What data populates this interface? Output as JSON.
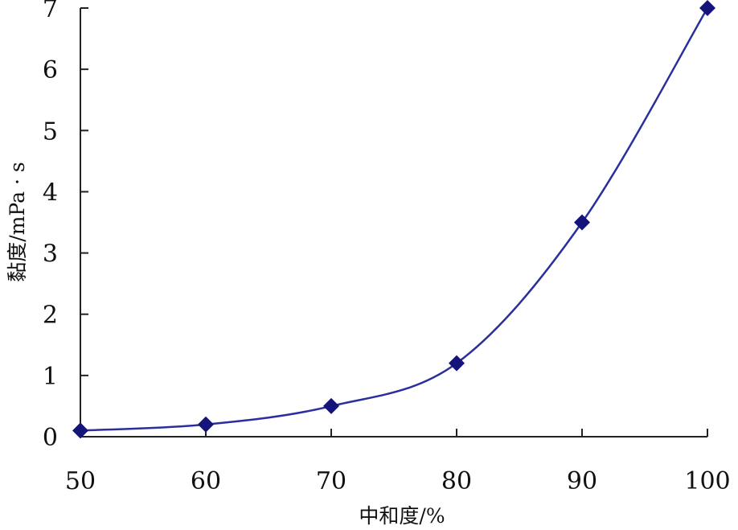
{
  "chart_data": {
    "type": "line",
    "title": "",
    "xlabel": "中和度/%",
    "ylabel": "黏度/mPa · s",
    "x": [
      50,
      60,
      70,
      80,
      90,
      100
    ],
    "xticks": [
      50,
      60,
      70,
      80,
      90,
      100
    ],
    "yticks": [
      0,
      1,
      2,
      3,
      4,
      5,
      6,
      7
    ],
    "xlim": [
      50,
      100
    ],
    "ylim": [
      0,
      7
    ],
    "grid": false,
    "legend": "none",
    "series": [
      {
        "values": [
          0.1,
          0.2,
          0.5,
          1.2,
          3.5,
          7.0
        ],
        "color": "#2b2f9e",
        "marker": "diamond",
        "marker_color": "#14147a"
      }
    ]
  }
}
